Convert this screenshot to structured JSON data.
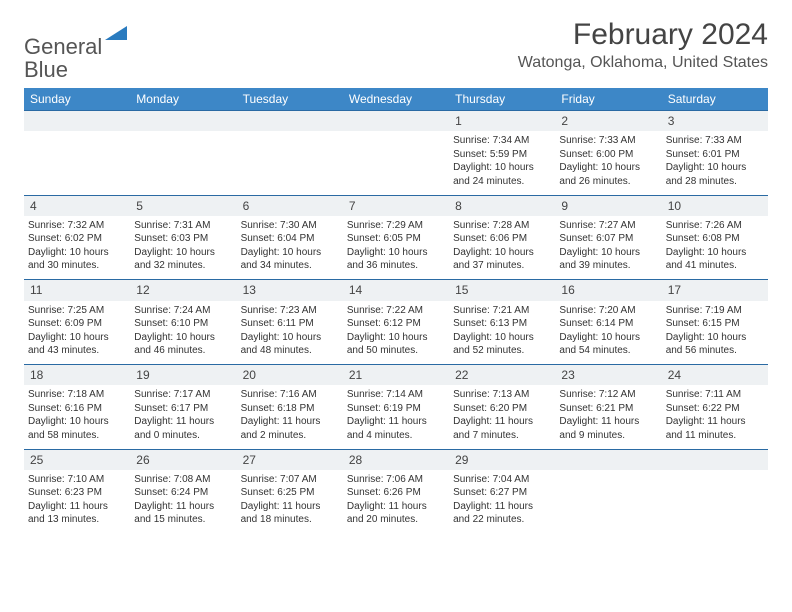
{
  "brand": {
    "name_a": "General",
    "name_b": "Blue"
  },
  "title": "February 2024",
  "location": "Watonga, Oklahoma, United States",
  "columns": [
    "Sunday",
    "Monday",
    "Tuesday",
    "Wednesday",
    "Thursday",
    "Friday",
    "Saturday"
  ],
  "colors": {
    "header_bg": "#3d87c7",
    "header_text": "#ffffff",
    "daynum_bg": "#eef1f3",
    "daynum_border": "#2a6aa3",
    "text": "#333333",
    "brand_gray": "#555555",
    "brand_blue": "#2a7bbf"
  },
  "weeks": [
    {
      "nums": [
        "",
        "",
        "",
        "",
        "1",
        "2",
        "3"
      ],
      "cells": [
        null,
        null,
        null,
        null,
        {
          "sunrise": "Sunrise: 7:34 AM",
          "sunset": "Sunset: 5:59 PM",
          "daylight": "Daylight: 10 hours and 24 minutes."
        },
        {
          "sunrise": "Sunrise: 7:33 AM",
          "sunset": "Sunset: 6:00 PM",
          "daylight": "Daylight: 10 hours and 26 minutes."
        },
        {
          "sunrise": "Sunrise: 7:33 AM",
          "sunset": "Sunset: 6:01 PM",
          "daylight": "Daylight: 10 hours and 28 minutes."
        }
      ]
    },
    {
      "nums": [
        "4",
        "5",
        "6",
        "7",
        "8",
        "9",
        "10"
      ],
      "cells": [
        {
          "sunrise": "Sunrise: 7:32 AM",
          "sunset": "Sunset: 6:02 PM",
          "daylight": "Daylight: 10 hours and 30 minutes."
        },
        {
          "sunrise": "Sunrise: 7:31 AM",
          "sunset": "Sunset: 6:03 PM",
          "daylight": "Daylight: 10 hours and 32 minutes."
        },
        {
          "sunrise": "Sunrise: 7:30 AM",
          "sunset": "Sunset: 6:04 PM",
          "daylight": "Daylight: 10 hours and 34 minutes."
        },
        {
          "sunrise": "Sunrise: 7:29 AM",
          "sunset": "Sunset: 6:05 PM",
          "daylight": "Daylight: 10 hours and 36 minutes."
        },
        {
          "sunrise": "Sunrise: 7:28 AM",
          "sunset": "Sunset: 6:06 PM",
          "daylight": "Daylight: 10 hours and 37 minutes."
        },
        {
          "sunrise": "Sunrise: 7:27 AM",
          "sunset": "Sunset: 6:07 PM",
          "daylight": "Daylight: 10 hours and 39 minutes."
        },
        {
          "sunrise": "Sunrise: 7:26 AM",
          "sunset": "Sunset: 6:08 PM",
          "daylight": "Daylight: 10 hours and 41 minutes."
        }
      ]
    },
    {
      "nums": [
        "11",
        "12",
        "13",
        "14",
        "15",
        "16",
        "17"
      ],
      "cells": [
        {
          "sunrise": "Sunrise: 7:25 AM",
          "sunset": "Sunset: 6:09 PM",
          "daylight": "Daylight: 10 hours and 43 minutes."
        },
        {
          "sunrise": "Sunrise: 7:24 AM",
          "sunset": "Sunset: 6:10 PM",
          "daylight": "Daylight: 10 hours and 46 minutes."
        },
        {
          "sunrise": "Sunrise: 7:23 AM",
          "sunset": "Sunset: 6:11 PM",
          "daylight": "Daylight: 10 hours and 48 minutes."
        },
        {
          "sunrise": "Sunrise: 7:22 AM",
          "sunset": "Sunset: 6:12 PM",
          "daylight": "Daylight: 10 hours and 50 minutes."
        },
        {
          "sunrise": "Sunrise: 7:21 AM",
          "sunset": "Sunset: 6:13 PM",
          "daylight": "Daylight: 10 hours and 52 minutes."
        },
        {
          "sunrise": "Sunrise: 7:20 AM",
          "sunset": "Sunset: 6:14 PM",
          "daylight": "Daylight: 10 hours and 54 minutes."
        },
        {
          "sunrise": "Sunrise: 7:19 AM",
          "sunset": "Sunset: 6:15 PM",
          "daylight": "Daylight: 10 hours and 56 minutes."
        }
      ]
    },
    {
      "nums": [
        "18",
        "19",
        "20",
        "21",
        "22",
        "23",
        "24"
      ],
      "cells": [
        {
          "sunrise": "Sunrise: 7:18 AM",
          "sunset": "Sunset: 6:16 PM",
          "daylight": "Daylight: 10 hours and 58 minutes."
        },
        {
          "sunrise": "Sunrise: 7:17 AM",
          "sunset": "Sunset: 6:17 PM",
          "daylight": "Daylight: 11 hours and 0 minutes."
        },
        {
          "sunrise": "Sunrise: 7:16 AM",
          "sunset": "Sunset: 6:18 PM",
          "daylight": "Daylight: 11 hours and 2 minutes."
        },
        {
          "sunrise": "Sunrise: 7:14 AM",
          "sunset": "Sunset: 6:19 PM",
          "daylight": "Daylight: 11 hours and 4 minutes."
        },
        {
          "sunrise": "Sunrise: 7:13 AM",
          "sunset": "Sunset: 6:20 PM",
          "daylight": "Daylight: 11 hours and 7 minutes."
        },
        {
          "sunrise": "Sunrise: 7:12 AM",
          "sunset": "Sunset: 6:21 PM",
          "daylight": "Daylight: 11 hours and 9 minutes."
        },
        {
          "sunrise": "Sunrise: 7:11 AM",
          "sunset": "Sunset: 6:22 PM",
          "daylight": "Daylight: 11 hours and 11 minutes."
        }
      ]
    },
    {
      "nums": [
        "25",
        "26",
        "27",
        "28",
        "29",
        "",
        ""
      ],
      "cells": [
        {
          "sunrise": "Sunrise: 7:10 AM",
          "sunset": "Sunset: 6:23 PM",
          "daylight": "Daylight: 11 hours and 13 minutes."
        },
        {
          "sunrise": "Sunrise: 7:08 AM",
          "sunset": "Sunset: 6:24 PM",
          "daylight": "Daylight: 11 hours and 15 minutes."
        },
        {
          "sunrise": "Sunrise: 7:07 AM",
          "sunset": "Sunset: 6:25 PM",
          "daylight": "Daylight: 11 hours and 18 minutes."
        },
        {
          "sunrise": "Sunrise: 7:06 AM",
          "sunset": "Sunset: 6:26 PM",
          "daylight": "Daylight: 11 hours and 20 minutes."
        },
        {
          "sunrise": "Sunrise: 7:04 AM",
          "sunset": "Sunset: 6:27 PM",
          "daylight": "Daylight: 11 hours and 22 minutes."
        },
        null,
        null
      ]
    }
  ]
}
